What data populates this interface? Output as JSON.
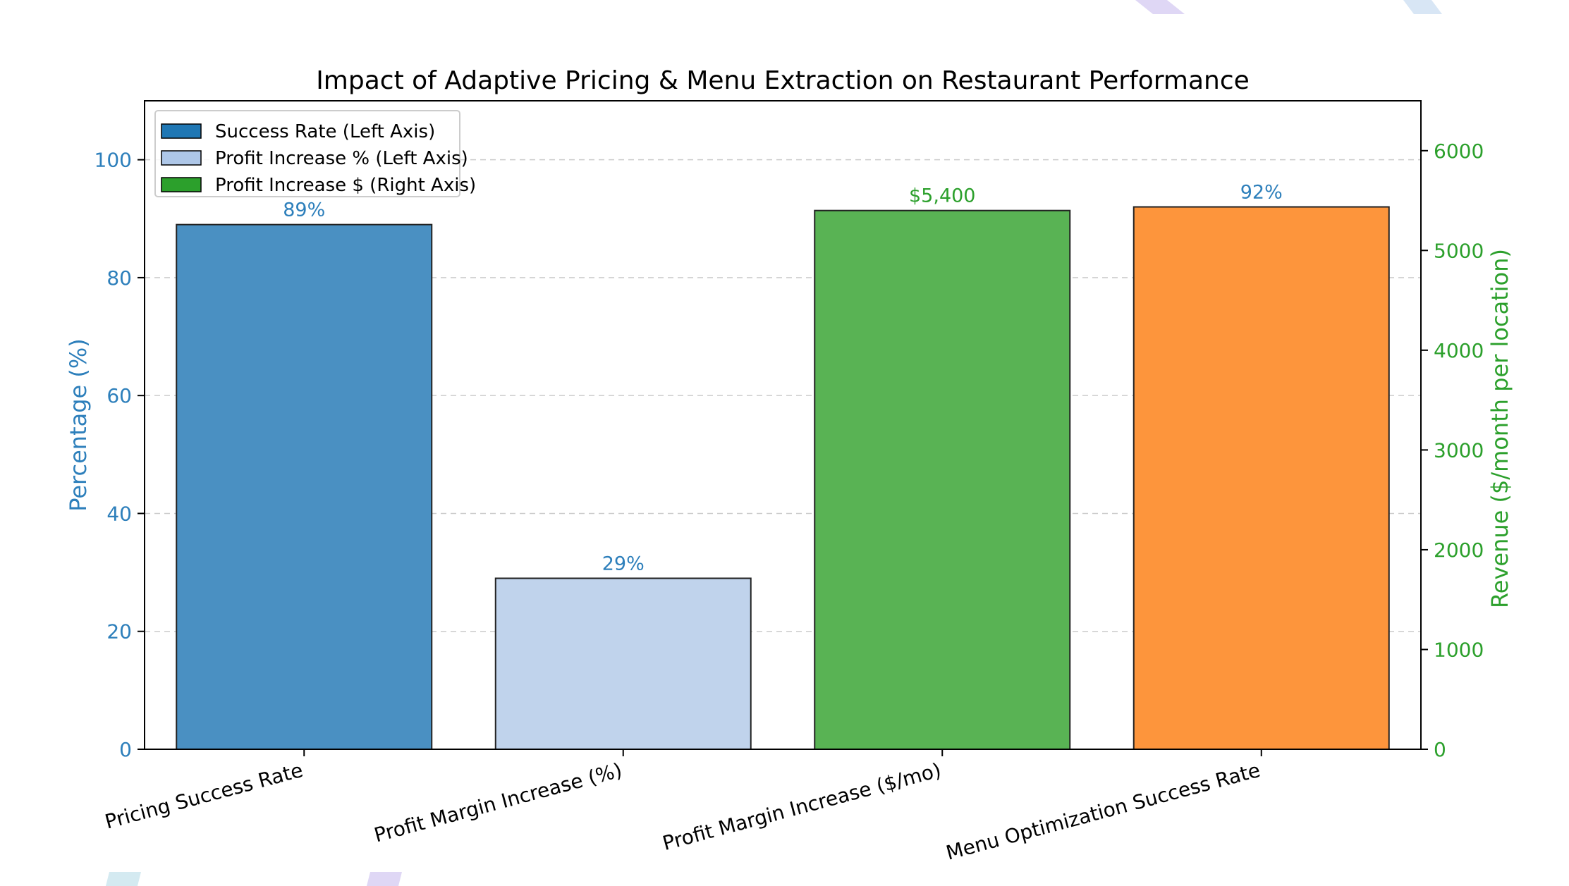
{
  "chart_data": {
    "type": "bar",
    "title": "Impact of Adaptive Pricing & Menu Extraction on Restaurant Performance",
    "categories": [
      "Pricing Success Rate",
      "Profit Margin Increase (%)",
      "Profit Margin Increase ($/mo)",
      "Menu Optimization Success Rate"
    ],
    "bars": [
      {
        "category": "Pricing Success Rate",
        "value": 89,
        "axis": "left",
        "label": "89%",
        "color": "#4a90c2"
      },
      {
        "category": "Profit Margin Increase (%)",
        "value": 29,
        "axis": "left",
        "label": "29%",
        "color": "#c0d3ec"
      },
      {
        "category": "Profit Margin Increase ($/mo)",
        "value": 5400,
        "axis": "right",
        "label": "$5,400",
        "color": "#59b354"
      },
      {
        "category": "Menu Optimization Success Rate",
        "value": 92,
        "axis": "left",
        "label": "92%",
        "color": "#fd953c"
      }
    ],
    "left_axis": {
      "label": "Percentage (%)",
      "ylim": [
        0,
        110
      ],
      "ticks": [
        0,
        20,
        40,
        60,
        80,
        100
      ],
      "color": "#2d7fbb"
    },
    "right_axis": {
      "label": "Revenue ($/month per location)",
      "ylim": [
        0,
        6500
      ],
      "ticks": [
        0,
        1000,
        2000,
        3000,
        4000,
        5000,
        6000
      ],
      "color": "#2ca02c"
    },
    "legend": {
      "placement": "top-left",
      "entries": [
        {
          "label": "Success Rate (Left Axis)",
          "color": "#1f77b4"
        },
        {
          "label": "Profit Increase % (Left Axis)",
          "color": "#aec7e8"
        },
        {
          "label": "Profit Increase $ (Right Axis)",
          "color": "#2ca02c"
        }
      ]
    },
    "grid": "horizontal dashed",
    "label_colors": {
      "left": "#2d7fbb",
      "right": "#2ca02c"
    }
  }
}
